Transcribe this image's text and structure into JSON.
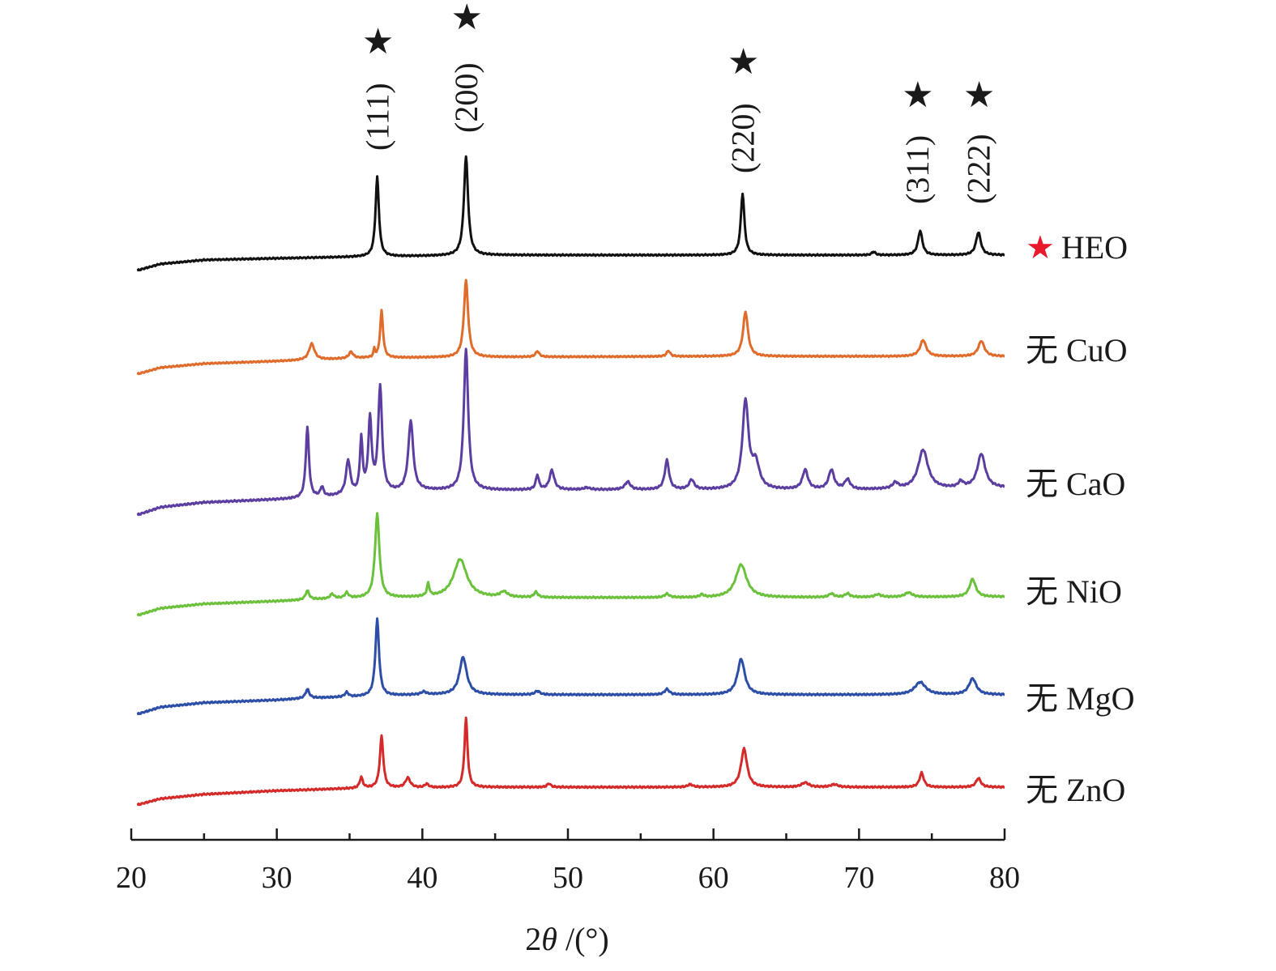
{
  "chart_data": {
    "type": "line",
    "xlabel_prefix": "2",
    "xlabel_theta": "θ",
    "xlabel_suffix": " /(°)",
    "xlim": [
      20,
      80
    ],
    "xticks": [
      20,
      30,
      40,
      50,
      60,
      70,
      80
    ],
    "xtick_labels": [
      "20",
      "30",
      "40",
      "50",
      "60",
      "70",
      "80"
    ],
    "marker_symbol": "★",
    "marker_color": "#e8192c",
    "peak_labels": [
      {
        "text": "(111)",
        "x": 36.9
      },
      {
        "text": "(200)",
        "x": 43.0
      },
      {
        "text": "(220)",
        "x": 62.0
      },
      {
        "text": "(311)",
        "x": 74.2
      },
      {
        "text": "(222)",
        "x": 78.2
      }
    ],
    "series": [
      {
        "name": "HEO",
        "color": "#111111",
        "marker": true,
        "baseline": [
          [
            20.4,
            0.0
          ],
          [
            22,
            0.08
          ],
          [
            25,
            0.13
          ],
          [
            30,
            0.15
          ],
          [
            36,
            0.17
          ],
          [
            45,
            0.19
          ],
          [
            60,
            0.19
          ],
          [
            80,
            0.19
          ]
        ],
        "peaks": [
          [
            36.9,
            0.98,
            0.28
          ],
          [
            43.0,
            1.22,
            0.34
          ],
          [
            62.0,
            0.76,
            0.3
          ],
          [
            74.2,
            0.3,
            0.36
          ],
          [
            78.2,
            0.28,
            0.4
          ],
          [
            71.0,
            0.04,
            0.3
          ]
        ]
      },
      {
        "name": "无 CuO",
        "color": "#e06c2c",
        "marker": false,
        "baseline": [
          [
            20.4,
            0.0
          ],
          [
            22,
            0.08
          ],
          [
            25,
            0.13
          ],
          [
            30,
            0.16
          ],
          [
            36,
            0.2
          ],
          [
            43,
            0.21
          ],
          [
            60,
            0.22
          ],
          [
            80,
            0.22
          ]
        ],
        "peaks": [
          [
            32.4,
            0.2,
            0.45
          ],
          [
            35.1,
            0.08,
            0.35
          ],
          [
            36.7,
            0.1,
            0.12
          ],
          [
            37.2,
            0.58,
            0.24
          ],
          [
            43.0,
            0.95,
            0.34
          ],
          [
            47.9,
            0.07,
            0.3
          ],
          [
            56.9,
            0.07,
            0.3
          ],
          [
            62.2,
            0.55,
            0.4
          ],
          [
            74.4,
            0.2,
            0.5
          ],
          [
            78.4,
            0.19,
            0.5
          ]
        ]
      },
      {
        "name": "无 CaO",
        "color": "#5b3ea0",
        "marker": false,
        "baseline": [
          [
            20.4,
            0.0
          ],
          [
            22,
            0.08
          ],
          [
            25,
            0.13
          ],
          [
            30,
            0.16
          ],
          [
            31.8,
            0.17
          ],
          [
            40,
            0.25
          ],
          [
            50,
            0.26
          ],
          [
            60,
            0.26
          ],
          [
            70,
            0.26
          ],
          [
            80,
            0.28
          ]
        ],
        "peaks": [
          [
            32.1,
            0.73,
            0.26
          ],
          [
            33.1,
            0.1,
            0.25
          ],
          [
            34.9,
            0.35,
            0.35
          ],
          [
            35.8,
            0.55,
            0.22
          ],
          [
            36.4,
            0.75,
            0.28
          ],
          [
            37.1,
            1.08,
            0.32
          ],
          [
            39.2,
            0.72,
            0.4
          ],
          [
            43.0,
            1.45,
            0.36
          ],
          [
            47.9,
            0.15,
            0.25
          ],
          [
            48.9,
            0.2,
            0.38
          ],
          [
            51.3,
            0.02,
            0.5
          ],
          [
            54.1,
            0.08,
            0.45
          ],
          [
            56.8,
            0.3,
            0.35
          ],
          [
            58.5,
            0.1,
            0.4
          ],
          [
            62.2,
            0.9,
            0.5
          ],
          [
            62.9,
            0.25,
            0.6
          ],
          [
            66.3,
            0.2,
            0.45
          ],
          [
            68.1,
            0.2,
            0.45
          ],
          [
            69.2,
            0.1,
            0.45
          ],
          [
            72.5,
            0.06,
            0.45
          ],
          [
            74.4,
            0.4,
            0.8
          ],
          [
            77.0,
            0.06,
            0.4
          ],
          [
            78.4,
            0.35,
            0.65
          ]
        ]
      },
      {
        "name": "无 NiO",
        "color": "#6cc13c",
        "marker": false,
        "baseline": [
          [
            20.4,
            0.0
          ],
          [
            22,
            0.08
          ],
          [
            25,
            0.13
          ],
          [
            30,
            0.16
          ],
          [
            34,
            0.19
          ],
          [
            40,
            0.2
          ],
          [
            60,
            0.2
          ],
          [
            80,
            0.21
          ]
        ],
        "peaks": [
          [
            32.1,
            0.1,
            0.3
          ],
          [
            33.8,
            0.05,
            0.3
          ],
          [
            34.8,
            0.06,
            0.3
          ],
          [
            36.9,
            0.94,
            0.36
          ],
          [
            40.4,
            0.14,
            0.2
          ],
          [
            42.6,
            0.43,
            1.1
          ],
          [
            45.6,
            0.06,
            0.6
          ],
          [
            47.8,
            0.06,
            0.3
          ],
          [
            56.8,
            0.04,
            0.4
          ],
          [
            59.2,
            0.03,
            0.3
          ],
          [
            61.9,
            0.37,
            0.9
          ],
          [
            68.1,
            0.04,
            0.4
          ],
          [
            69.2,
            0.04,
            0.4
          ],
          [
            71.3,
            0.03,
            0.5
          ],
          [
            73.4,
            0.05,
            0.6
          ],
          [
            77.8,
            0.2,
            0.5
          ]
        ]
      },
      {
        "name": "无 MgO",
        "color": "#2c4ea6",
        "marker": false,
        "baseline": [
          [
            20.4,
            0.0
          ],
          [
            22,
            0.08
          ],
          [
            25,
            0.13
          ],
          [
            30,
            0.16
          ],
          [
            32,
            0.18
          ],
          [
            40,
            0.22
          ],
          [
            60,
            0.22
          ],
          [
            80,
            0.22
          ]
        ],
        "peaks": [
          [
            32.1,
            0.1,
            0.3
          ],
          [
            34.8,
            0.05,
            0.3
          ],
          [
            36.9,
            0.86,
            0.3
          ],
          [
            40.1,
            0.03,
            0.4
          ],
          [
            42.8,
            0.42,
            0.6
          ],
          [
            47.9,
            0.04,
            0.4
          ],
          [
            56.8,
            0.06,
            0.4
          ],
          [
            61.9,
            0.4,
            0.6
          ],
          [
            74.2,
            0.14,
            0.9
          ],
          [
            77.8,
            0.18,
            0.6
          ]
        ]
      },
      {
        "name": "无 ZnO",
        "color": "#d42a2a",
        "marker": false,
        "baseline": [
          [
            20.4,
            0.0
          ],
          [
            22,
            0.07
          ],
          [
            25,
            0.12
          ],
          [
            30,
            0.16
          ],
          [
            36,
            0.19
          ],
          [
            45,
            0.2
          ],
          [
            60,
            0.2
          ],
          [
            80,
            0.2
          ]
        ],
        "peaks": [
          [
            35.8,
            0.12,
            0.25
          ],
          [
            37.2,
            0.58,
            0.28
          ],
          [
            39.0,
            0.11,
            0.4
          ],
          [
            40.3,
            0.04,
            0.3
          ],
          [
            43.0,
            0.78,
            0.25
          ],
          [
            48.7,
            0.04,
            0.3
          ],
          [
            58.4,
            0.03,
            0.4
          ],
          [
            62.1,
            0.43,
            0.5
          ],
          [
            66.3,
            0.05,
            0.6
          ],
          [
            68.3,
            0.03,
            0.6
          ],
          [
            74.3,
            0.16,
            0.35
          ],
          [
            78.2,
            0.1,
            0.4
          ]
        ]
      }
    ]
  }
}
